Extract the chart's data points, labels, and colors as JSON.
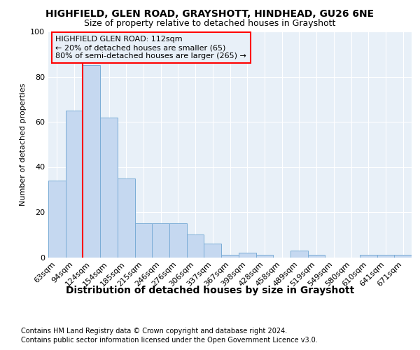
{
  "title_line1": "HIGHFIELD, GLEN ROAD, GRAYSHOTT, HINDHEAD, GU26 6NE",
  "title_line2": "Size of property relative to detached houses in Grayshott",
  "xlabel": "Distribution of detached houses by size in Grayshott",
  "ylabel": "Number of detached properties",
  "bar_labels": [
    "63sqm",
    "94sqm",
    "124sqm",
    "154sqm",
    "185sqm",
    "215sqm",
    "246sqm",
    "276sqm",
    "306sqm",
    "337sqm",
    "367sqm",
    "398sqm",
    "428sqm",
    "458sqm",
    "489sqm",
    "519sqm",
    "549sqm",
    "580sqm",
    "610sqm",
    "641sqm",
    "671sqm"
  ],
  "bar_values": [
    34,
    65,
    85,
    62,
    35,
    15,
    15,
    15,
    10,
    6,
    1,
    2,
    1,
    0,
    3,
    1,
    0,
    0,
    1,
    1,
    1
  ],
  "bar_color": "#c5d8f0",
  "bar_edge_color": "#7aacd6",
  "red_line_x": 2.0,
  "annotation_box_text": "HIGHFIELD GLEN ROAD: 112sqm\n← 20% of detached houses are smaller (65)\n80% of semi-detached houses are larger (265) →",
  "ylim": [
    0,
    100
  ],
  "yticks": [
    0,
    20,
    40,
    60,
    80,
    100
  ],
  "footnote1": "Contains HM Land Registry data © Crown copyright and database right 2024.",
  "footnote2": "Contains public sector information licensed under the Open Government Licence v3.0.",
  "background_color": "#ffffff",
  "plot_bg_color": "#e8f0f8",
  "grid_color": "#ffffff",
  "title1_fontsize": 10,
  "title2_fontsize": 9,
  "xlabel_fontsize": 10,
  "ylabel_fontsize": 8,
  "tick_fontsize": 8,
  "footnote_fontsize": 7
}
